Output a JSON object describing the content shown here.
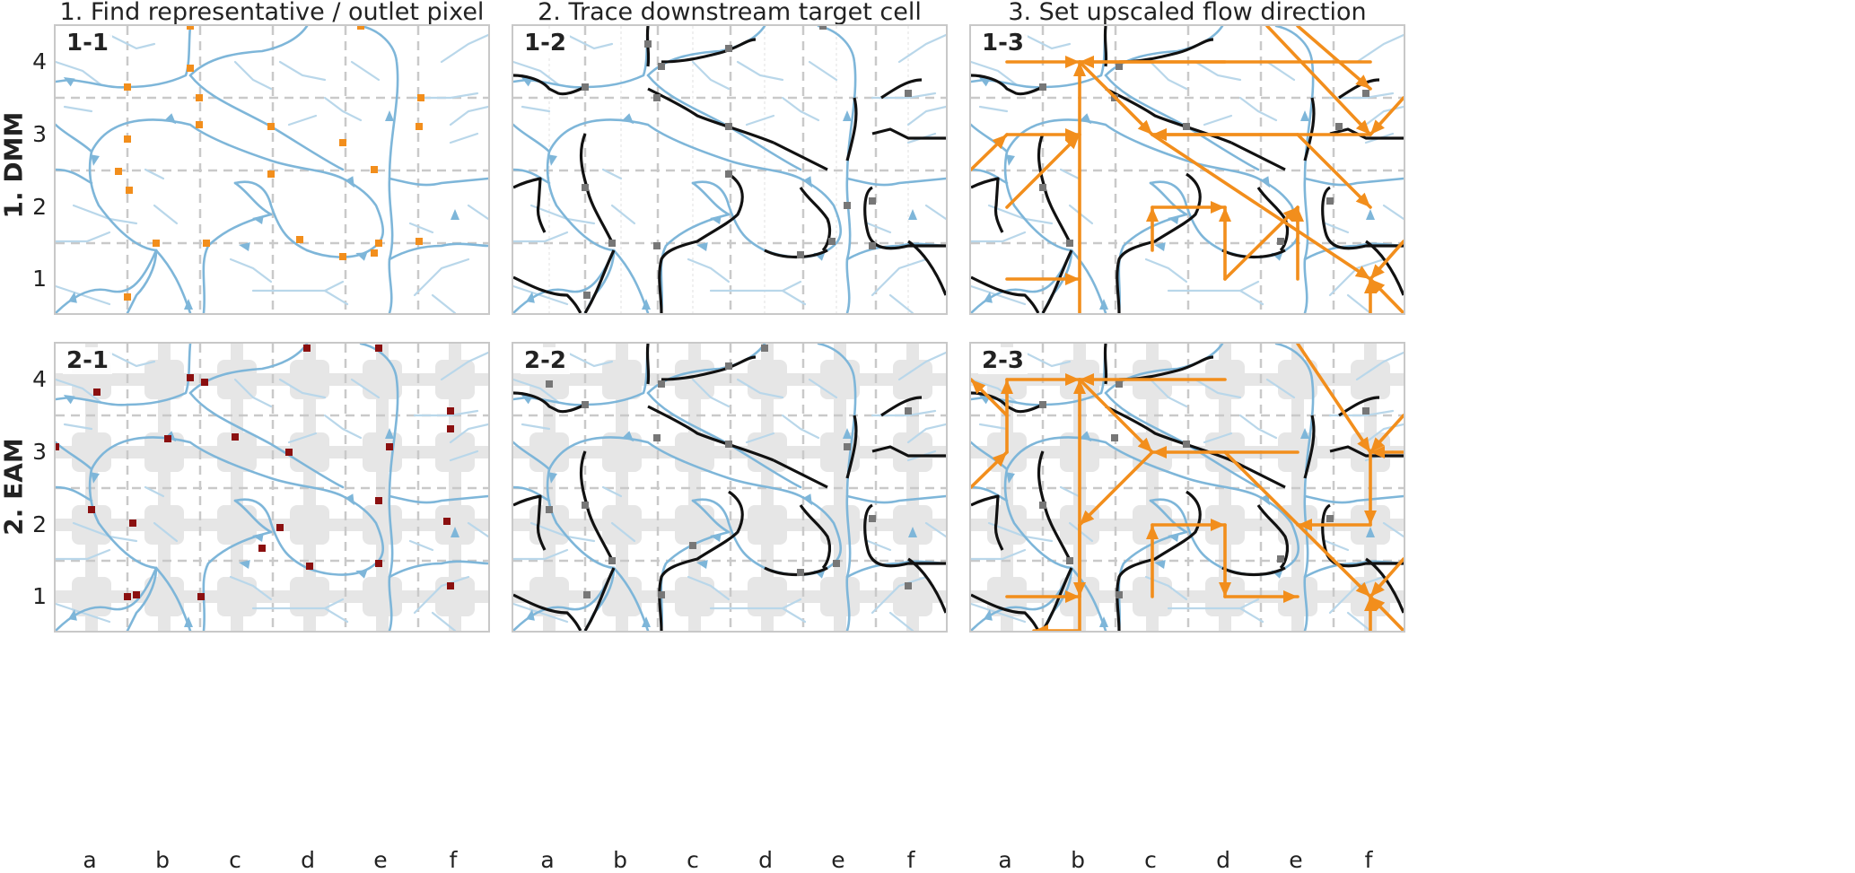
{
  "column_titles": [
    "1. Find representative / outlet pixel",
    "2. Trace downstream target cell",
    "3. Set upscaled flow direction"
  ],
  "row_labels": [
    "1. DMM",
    "2. EAM"
  ],
  "y_ticks": [
    "4",
    "3",
    "2",
    "1"
  ],
  "x_ticks": [
    "a",
    "b",
    "c",
    "d",
    "e",
    "f"
  ],
  "panels": [
    {
      "label": "1-1"
    },
    {
      "label": "1-2"
    },
    {
      "label": "1-3"
    },
    {
      "label": "2-1"
    },
    {
      "label": "2-2"
    },
    {
      "label": "2-3"
    }
  ],
  "colors": {
    "river": "#7eb6d9",
    "river_light": "#b9d7ea",
    "trace": "#111111",
    "outlet_dmm": "#f28e1c",
    "outlet_eam": "#8b1010",
    "target": "#777777",
    "flow_arrow": "#f28e1c",
    "grid": "#c9c9c9",
    "eam_band": "#e6e6e6"
  }
}
